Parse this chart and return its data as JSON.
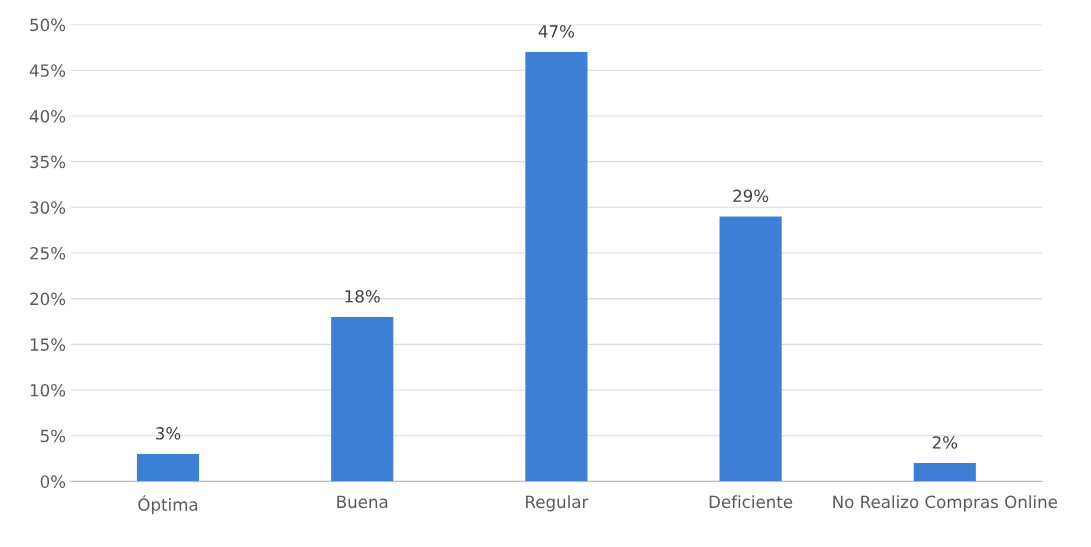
{
  "chart_data": {
    "type": "bar",
    "categories": [
      "Óptima",
      "Buena",
      "Regular",
      "Deficiente",
      "No Realizo Compras Online"
    ],
    "values": [
      3,
      18,
      47,
      29,
      2
    ],
    "value_labels": [
      "3%",
      "18%",
      "47%",
      "29%",
      "2%"
    ],
    "color": "#3b7fd6",
    "ylim": [
      0,
      50
    ],
    "yticks": [
      {
        "value": 0,
        "label": "0%"
      },
      {
        "value": 5,
        "label": "5%"
      },
      {
        "value": 10,
        "label": "10%"
      },
      {
        "value": 15,
        "label": "15%"
      },
      {
        "value": 20,
        "label": "20%"
      },
      {
        "value": 25,
        "label": "25%"
      },
      {
        "value": 30,
        "label": "30%"
      },
      {
        "value": 35,
        "label": "35%"
      },
      {
        "value": 40,
        "label": "40%"
      },
      {
        "value": 45,
        "label": "45%"
      },
      {
        "value": 50,
        "label": "50%"
      }
    ],
    "grid": "y"
  }
}
